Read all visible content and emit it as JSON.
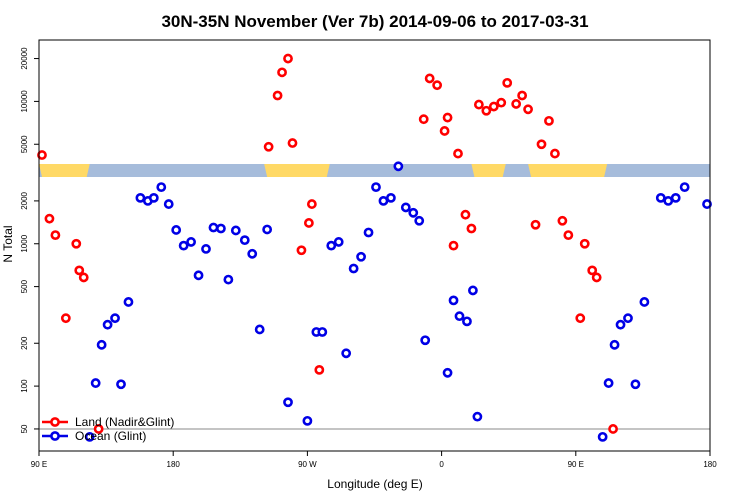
{
  "chart_data": {
    "type": "scatter",
    "title": "30N-35N November (Ver 7b)   2014-09-06 to 2017-03-31",
    "xlabel": "Longitude (deg E)",
    "ylabel": "N Total",
    "x_scale": "linear",
    "y_scale": "log",
    "xlim": [
      90,
      540
    ],
    "ylim": [
      35,
      27000
    ],
    "x_ticks": [
      {
        "value": 90,
        "label": "90 E"
      },
      {
        "value": 180,
        "label": "180"
      },
      {
        "value": 270,
        "label": "90 W"
      },
      {
        "value": 360,
        "label": "0"
      },
      {
        "value": 450,
        "label": "90 E"
      },
      {
        "value": 540,
        "label": "180"
      }
    ],
    "y_ticks": [
      {
        "value": 50,
        "label": "50"
      },
      {
        "value": 100,
        "label": "100"
      },
      {
        "value": 200,
        "label": "200"
      },
      {
        "value": 500,
        "label": "500"
      },
      {
        "value": 1000,
        "label": "1000"
      },
      {
        "value": 2000,
        "label": "2000"
      },
      {
        "value": 5000,
        "label": "5000"
      },
      {
        "value": 10000,
        "label": "10000"
      },
      {
        "value": 20000,
        "label": "20000"
      }
    ],
    "reference_line_y": 50,
    "land_ocean_strip": {
      "colors": {
        "land": "#ffd966",
        "ocean": "#a6bcdb"
      },
      "land_segments": [
        [
          90,
          124
        ],
        [
          241,
          285
        ],
        [
          380,
          403
        ],
        [
          418,
          471
        ]
      ]
    },
    "legend_position": "bottom-left",
    "series": [
      {
        "name": "Land (Nadir&Glint)",
        "color": "#ff0000",
        "points": [
          [
            92,
            4200
          ],
          [
            97,
            1500
          ],
          [
            101,
            1150
          ],
          [
            108,
            300
          ],
          [
            115,
            1000
          ],
          [
            117,
            650
          ],
          [
            120,
            580
          ],
          [
            130,
            50
          ],
          [
            244,
            4800
          ],
          [
            250,
            11000
          ],
          [
            253,
            16000
          ],
          [
            257,
            20000
          ],
          [
            260,
            5100
          ],
          [
            266,
            900
          ],
          [
            271,
            1400
          ],
          [
            273,
            1900
          ],
          [
            278,
            130
          ],
          [
            348,
            7500
          ],
          [
            352,
            14500
          ],
          [
            357,
            13000
          ],
          [
            362,
            6200
          ],
          [
            364,
            7700
          ],
          [
            368,
            970
          ],
          [
            371,
            4300
          ],
          [
            376,
            1600
          ],
          [
            380,
            1280
          ],
          [
            385,
            9500
          ],
          [
            390,
            8600
          ],
          [
            395,
            9200
          ],
          [
            400,
            9800
          ],
          [
            404,
            13500
          ],
          [
            410,
            9600
          ],
          [
            414,
            11000
          ],
          [
            418,
            8800
          ],
          [
            423,
            1360
          ],
          [
            427,
            5000
          ],
          [
            432,
            7300
          ],
          [
            436,
            4300
          ],
          [
            441,
            1450
          ],
          [
            445,
            1150
          ],
          [
            453,
            300
          ],
          [
            456,
            1000
          ],
          [
            461,
            650
          ],
          [
            464,
            580
          ],
          [
            475,
            50
          ]
        ]
      },
      {
        "name": "Ocean (Glint)",
        "color": "#0000e6",
        "points": [
          [
            124,
            44
          ],
          [
            128,
            105
          ],
          [
            132,
            195
          ],
          [
            136,
            270
          ],
          [
            141,
            300
          ],
          [
            145,
            103
          ],
          [
            150,
            390
          ],
          [
            158,
            2100
          ],
          [
            163,
            2000
          ],
          [
            167,
            2100
          ],
          [
            172,
            2500
          ],
          [
            177,
            1900
          ],
          [
            182,
            1250
          ],
          [
            187,
            970
          ],
          [
            192,
            1030
          ],
          [
            197,
            600
          ],
          [
            202,
            920
          ],
          [
            207,
            1300
          ],
          [
            212,
            1280
          ],
          [
            217,
            560
          ],
          [
            222,
            1240
          ],
          [
            228,
            1060
          ],
          [
            233,
            850
          ],
          [
            238,
            250
          ],
          [
            243,
            1260
          ],
          [
            257,
            77
          ],
          [
            270,
            57
          ],
          [
            276,
            240
          ],
          [
            280,
            240
          ],
          [
            286,
            970
          ],
          [
            291,
            1030
          ],
          [
            296,
            170
          ],
          [
            301,
            670
          ],
          [
            306,
            810
          ],
          [
            311,
            1200
          ],
          [
            316,
            2500
          ],
          [
            321,
            2000
          ],
          [
            326,
            2100
          ],
          [
            331,
            3500
          ],
          [
            336,
            1800
          ],
          [
            341,
            1650
          ],
          [
            345,
            1450
          ],
          [
            349,
            210
          ],
          [
            364,
            124
          ],
          [
            368,
            400
          ],
          [
            372,
            310
          ],
          [
            377,
            285
          ],
          [
            381,
            470
          ],
          [
            384,
            61
          ],
          [
            468,
            44
          ],
          [
            472,
            105
          ],
          [
            476,
            195
          ],
          [
            480,
            270
          ],
          [
            485,
            300
          ],
          [
            490,
            103
          ],
          [
            496,
            390
          ],
          [
            507,
            2100
          ],
          [
            512,
            2000
          ],
          [
            517,
            2100
          ],
          [
            523,
            2500
          ],
          [
            538,
            1900
          ]
        ]
      }
    ]
  }
}
